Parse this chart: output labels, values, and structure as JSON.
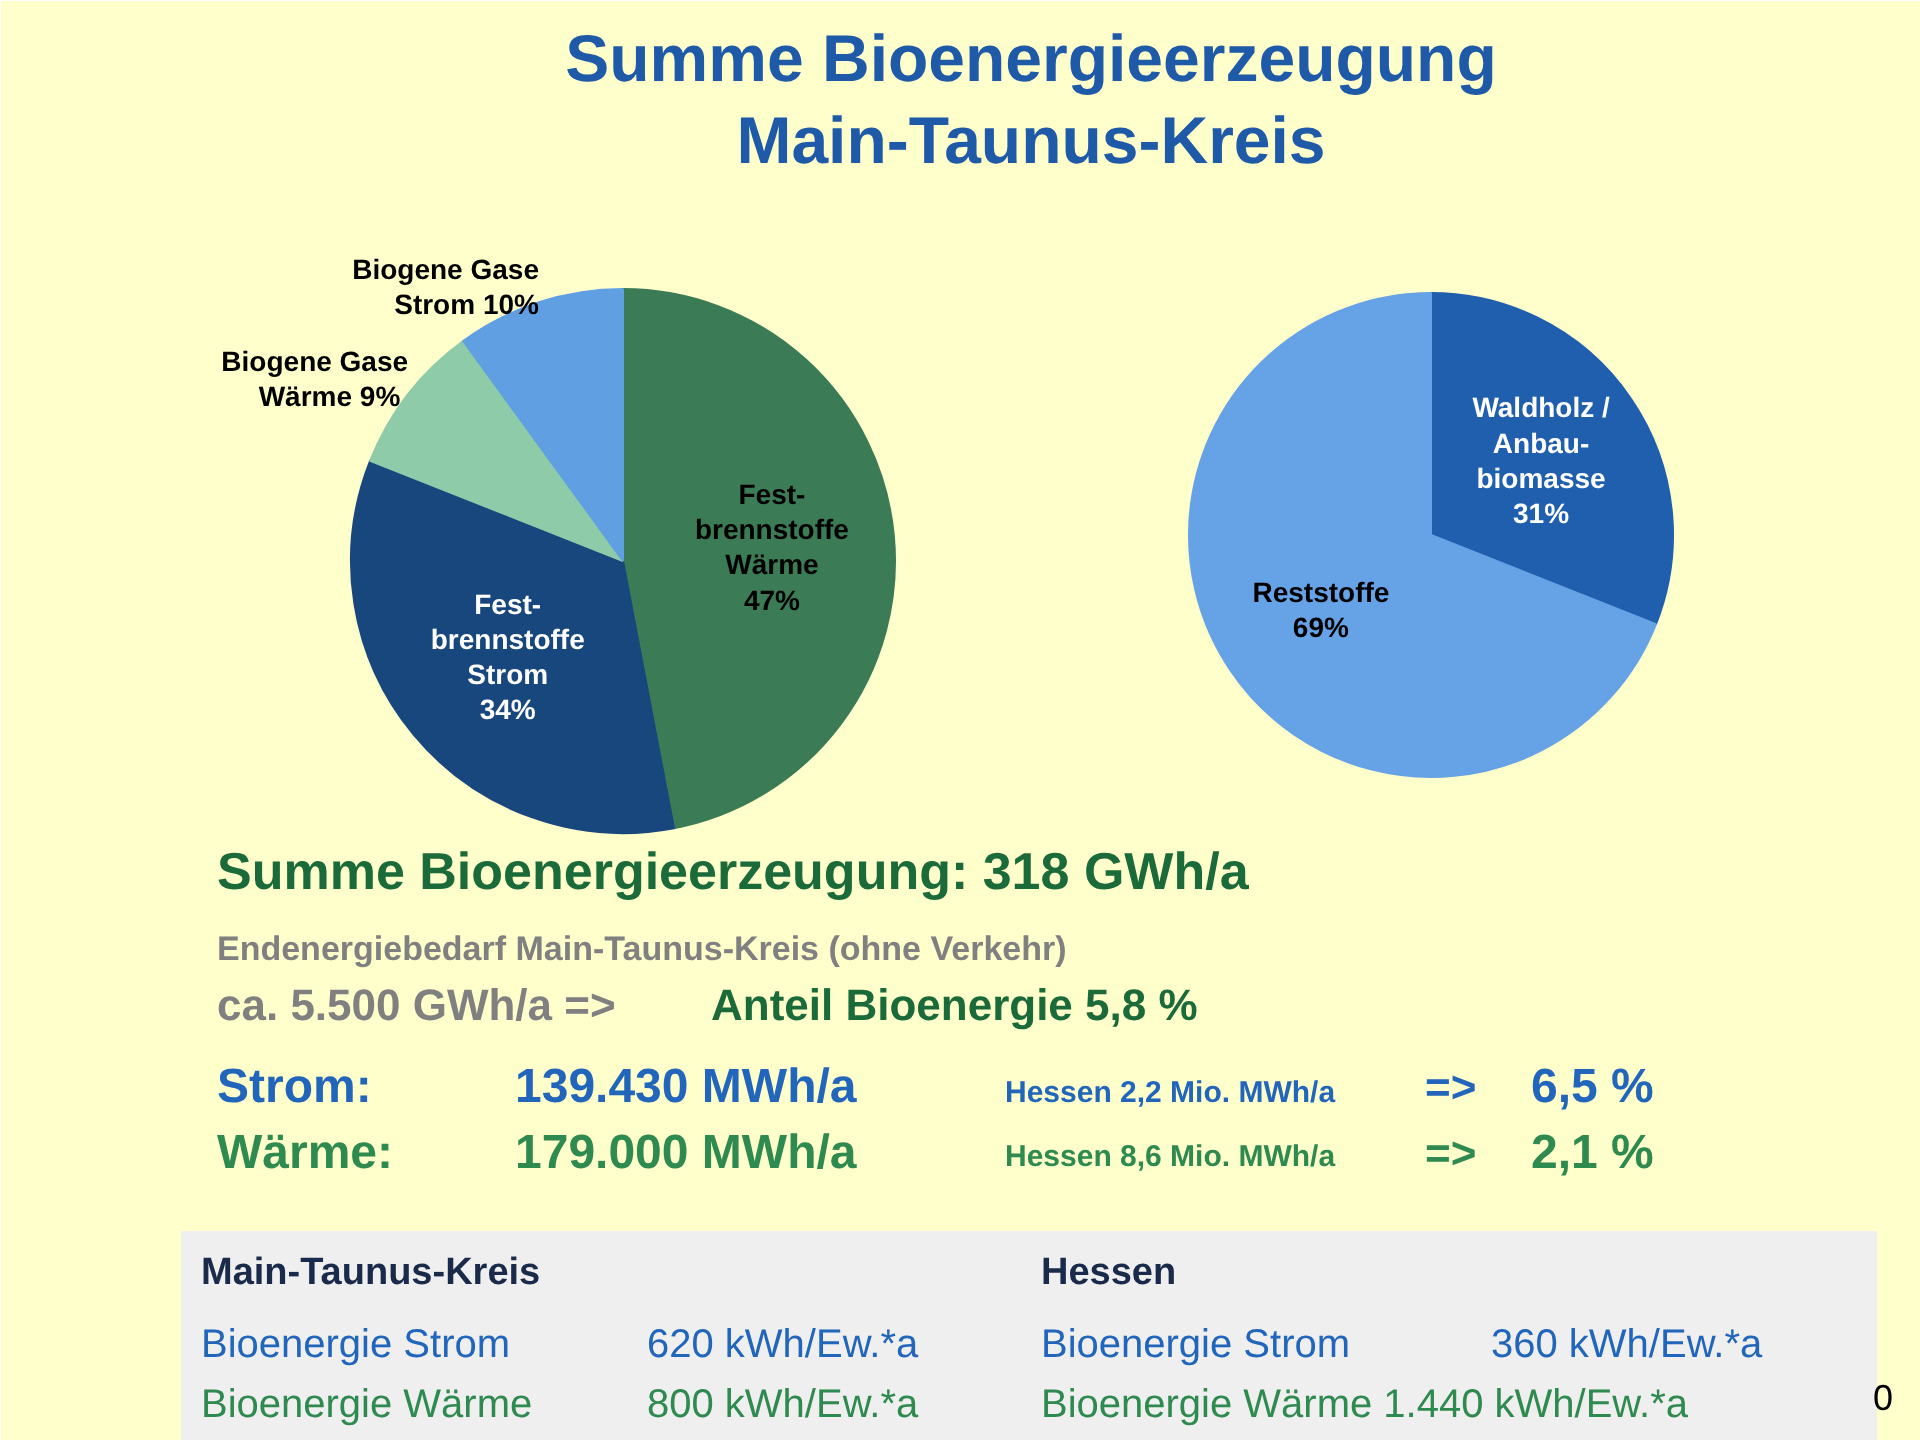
{
  "chart_data": [
    {
      "type": "pie",
      "title": "Summe Bioenergieerzeugung\nMain-Taunus-Kreis",
      "categories": [
        "Fest-\nbrennstoffe\nWärme",
        "Fest-\nbrennstoffe\nStrom",
        "Biogene Gase\nWärme ",
        "Biogene Gase\nStrom"
      ],
      "values": [
        47,
        34,
        9,
        10
      ],
      "colors": [
        "#3b7b55",
        "#18477e",
        "#8ecba8",
        "#5f9fe2"
      ],
      "value_labels": [
        "47%",
        "34%",
        "9%",
        "10%"
      ]
    },
    {
      "type": "pie",
      "categories": [
        "Waldholz /\nAnbau-\nbiomasse",
        "Reststoffe"
      ],
      "values": [
        31,
        69
      ],
      "colors": [
        "#1f5fae",
        "#66a2e6"
      ],
      "value_labels": [
        "31%",
        "69%"
      ]
    },
    {
      "type": "other",
      "annotations": [
        "Summe Bioenergieerzeugung: 318 GWh/a",
        "Endenergiebedarf Main-Taunus-Kreis   (ohne Verkehr)",
        "ca. 5.500 GWh/a =>",
        "Anteil Bioenergie 5,8 %",
        "Strom:",
        "139.430 MWh/a",
        "Hessen 2,2 Mio. MWh/a",
        "=>",
        "6,5 %",
        "Wärme:",
        "179.000 MWh/a",
        "Hessen 8,6 Mio. MWh/a",
        "=>",
        "2,1 %",
        "Main-Taunus-Kreis",
        "Hessen",
        "Bioenergie Strom",
        "620 kWh/Ew.*a",
        "Bioenergie Strom",
        "360 kWh/Ew.*a",
        "Bioenergie Wärme",
        "800 kWh/Ew.*a",
        "Bioenergie Wärme 1.440 kWh/Ew.*a",
        "0"
      ]
    }
  ]
}
